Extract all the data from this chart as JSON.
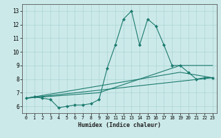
{
  "title": "",
  "xlabel": "Humidex (Indice chaleur)",
  "ylabel": "",
  "bg_color": "#cce9e9",
  "grid_color": "#aad4d4",
  "line_color": "#1a7a6e",
  "xlim": [
    -0.5,
    23.5
  ],
  "ylim": [
    5.5,
    13.5
  ],
  "xticks": [
    0,
    1,
    2,
    3,
    4,
    5,
    6,
    7,
    8,
    9,
    10,
    11,
    12,
    13,
    14,
    15,
    16,
    17,
    18,
    19,
    20,
    21,
    22,
    23
  ],
  "yticks": [
    6,
    7,
    8,
    9,
    10,
    11,
    12,
    13
  ],
  "series_main": {
    "x": [
      0,
      1,
      2,
      3,
      4,
      5,
      6,
      7,
      8,
      9,
      10,
      11,
      12,
      13,
      14,
      15,
      16,
      17,
      18,
      19,
      20,
      21,
      22,
      23
    ],
    "y": [
      6.6,
      6.7,
      6.6,
      6.5,
      5.9,
      6.0,
      6.1,
      6.1,
      6.2,
      6.5,
      8.8,
      10.5,
      12.4,
      13.0,
      10.5,
      12.4,
      11.9,
      10.5,
      9.0,
      9.0,
      8.5,
      8.0,
      8.1,
      8.1
    ]
  },
  "series_lines": [
    {
      "x": [
        0,
        9,
        19,
        23
      ],
      "y": [
        6.6,
        7.0,
        9.0,
        9.0
      ]
    },
    {
      "x": [
        0,
        19,
        23
      ],
      "y": [
        6.6,
        8.5,
        8.1
      ]
    },
    {
      "x": [
        0,
        23
      ],
      "y": [
        6.6,
        8.1
      ]
    }
  ]
}
